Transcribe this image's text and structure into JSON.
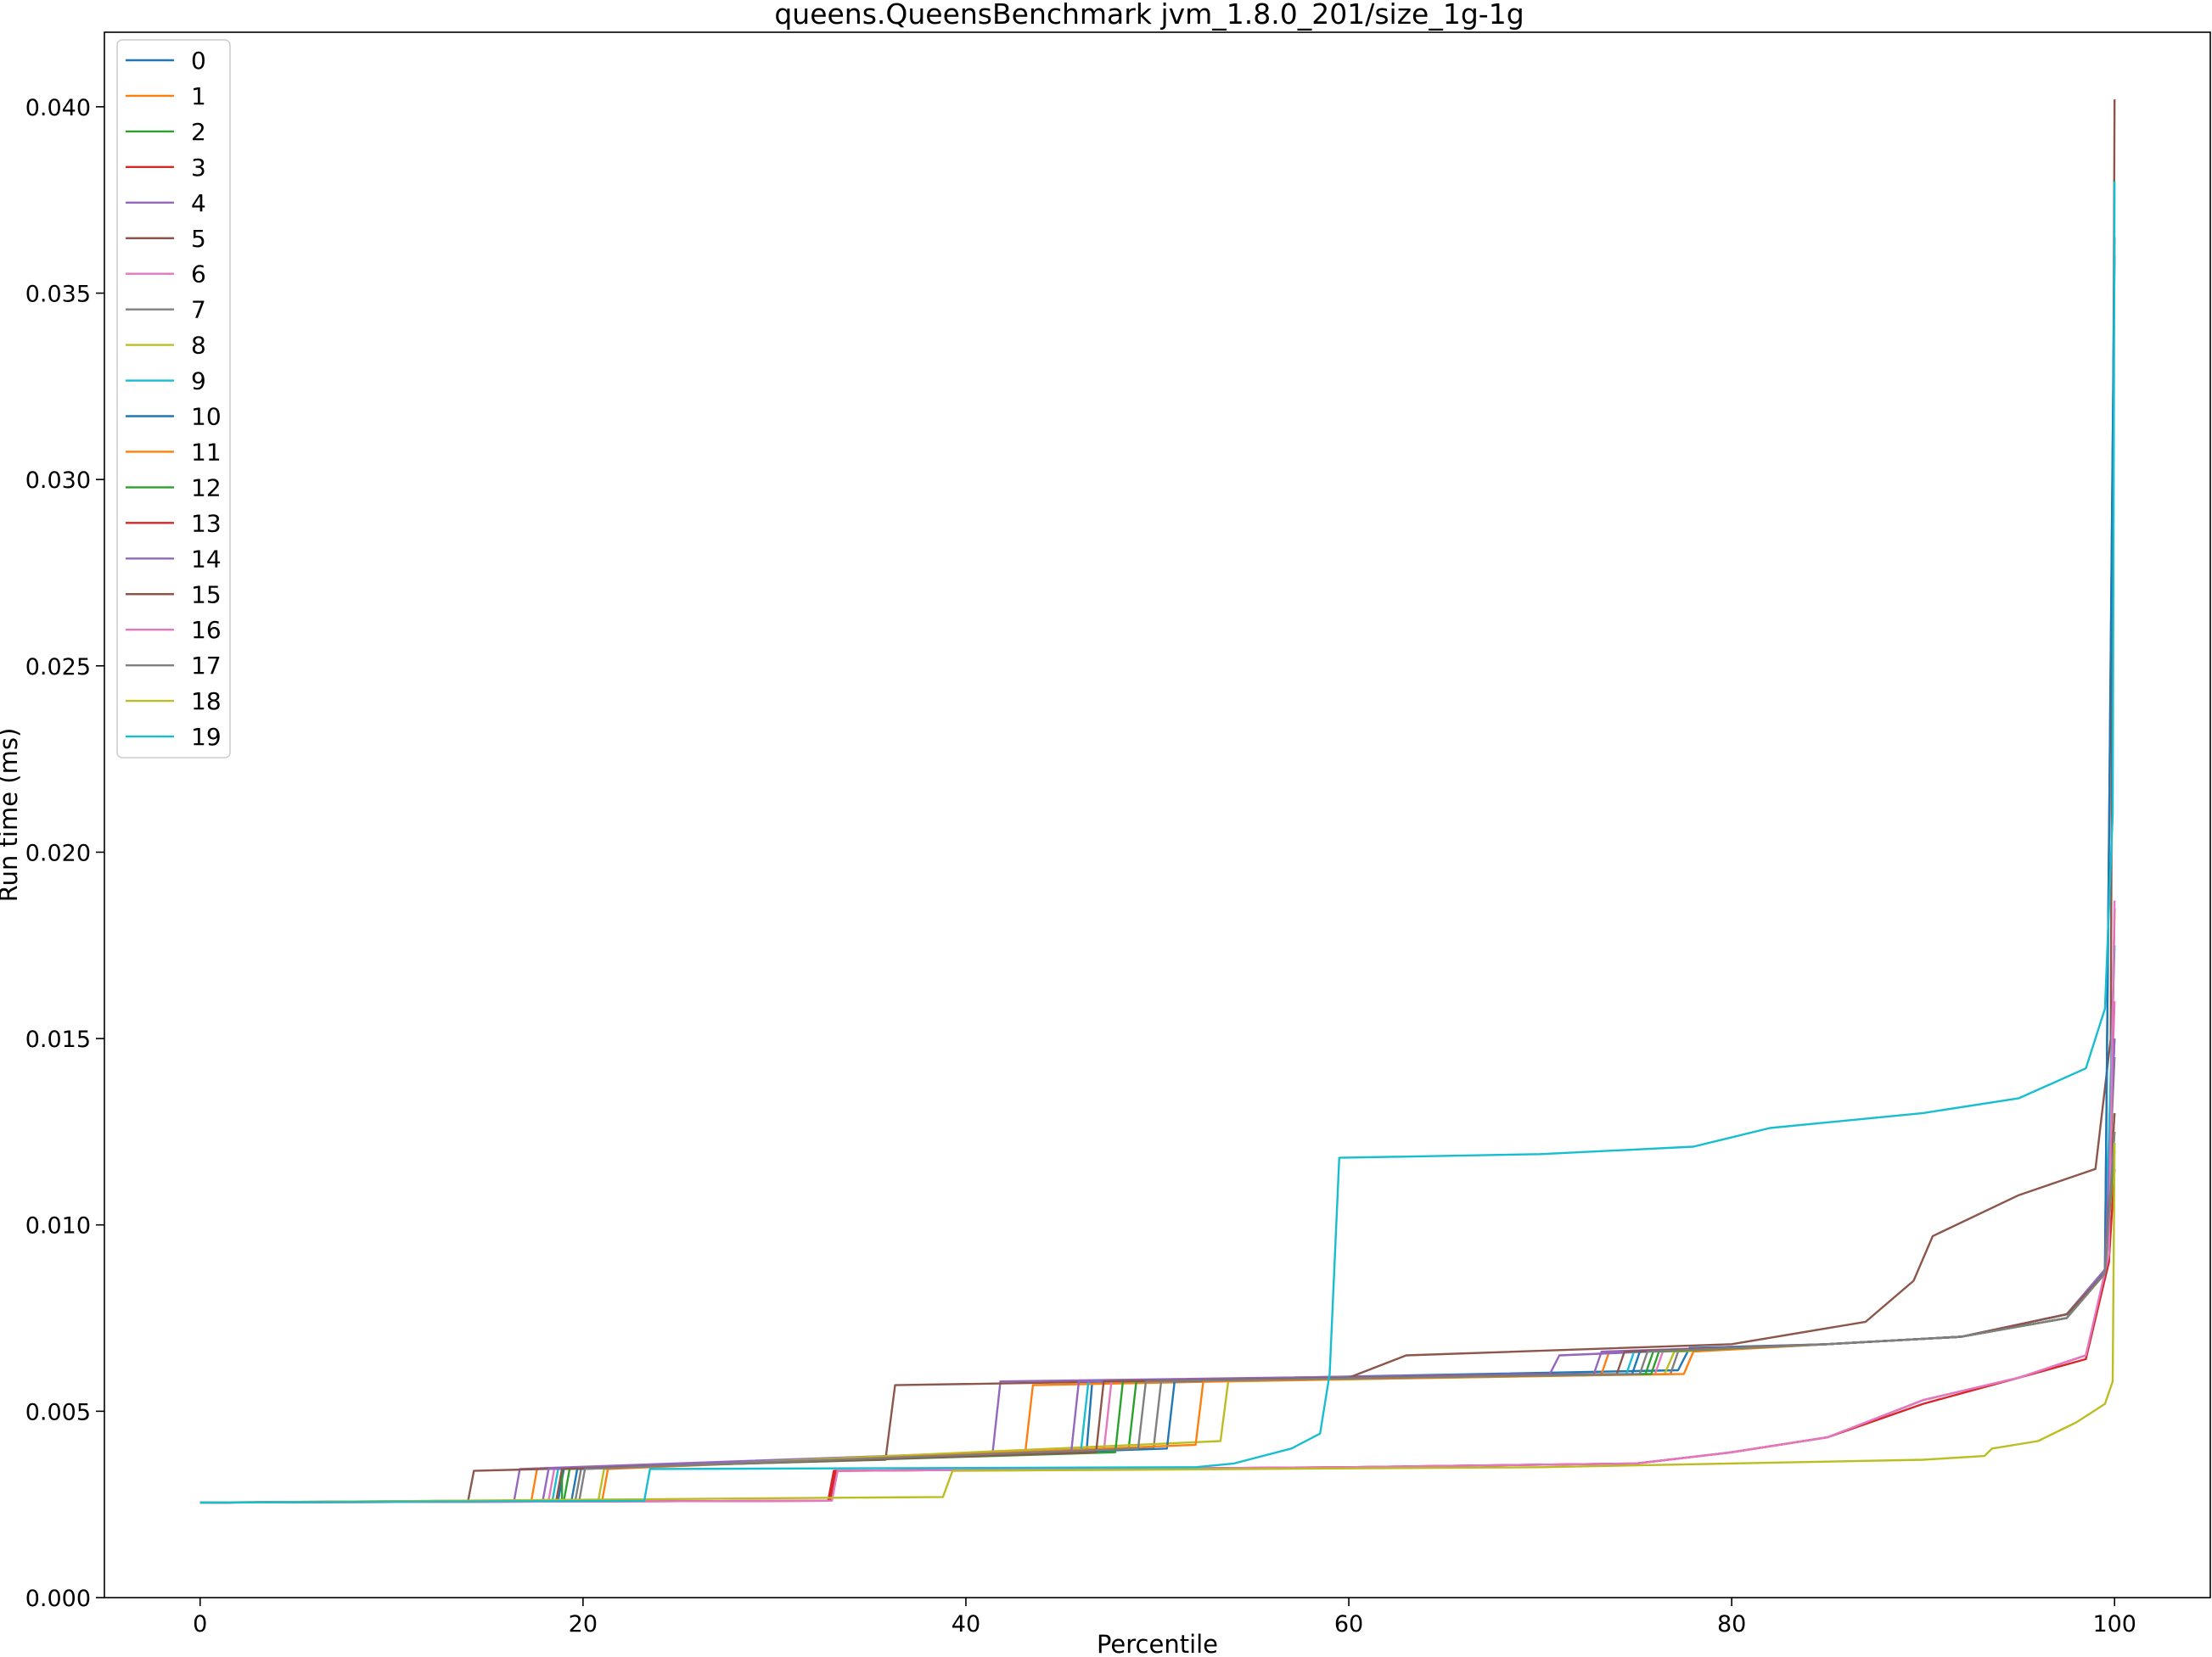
{
  "chart_data": {
    "type": "line",
    "title": "queens.QueensBenchmark jvm_1.8.0_201/size_1g-1g",
    "xlabel": "Percentile",
    "ylabel": "Run time (ms)",
    "xlim": [
      -5,
      105
    ],
    "ylim": [
      0.0,
      0.042
    ],
    "xticks": [
      0,
      20,
      40,
      60,
      80,
      100
    ],
    "xtick_labels": [
      "0",
      "20",
      "40",
      "60",
      "80",
      "100"
    ],
    "yticks": [
      0.0,
      0.005,
      0.01,
      0.015,
      0.02,
      0.025,
      0.03,
      0.035,
      0.04
    ],
    "ytick_labels": [
      "0.000",
      "0.005",
      "0.010",
      "0.015",
      "0.020",
      "0.025",
      "0.030",
      "0.035",
      "0.040"
    ],
    "grid": false,
    "legend_position": "upper-left",
    "colors": [
      "#1f77b4",
      "#ff7f0e",
      "#2ca02c",
      "#d62728",
      "#9467bd",
      "#8c564b",
      "#e377c2",
      "#7f7f7f",
      "#bcbd22",
      "#17becf"
    ],
    "series": [
      {
        "name": "0",
        "x": [
          0,
          18.7,
          19.0,
          46.3,
          46.6,
          77.2,
          77.8,
          85,
          92,
          97.5,
          99.5,
          100
        ],
        "y": [
          0.00255,
          0.0026,
          0.00345,
          0.0039,
          0.0058,
          0.0061,
          0.0067,
          0.0068,
          0.007,
          0.0076,
          0.0088,
          0.036
        ]
      },
      {
        "name": "1",
        "x": [
          0,
          17.3,
          17.6,
          43.1,
          43.5,
          73.2,
          73.6,
          85,
          92,
          97.5,
          99.5,
          100
        ],
        "y": [
          0.00255,
          0.0026,
          0.00345,
          0.0039,
          0.0057,
          0.006,
          0.0066,
          0.0068,
          0.007,
          0.0075,
          0.0087,
          0.0125
        ]
      },
      {
        "name": "2",
        "x": [
          0,
          19.0,
          19.3,
          48.5,
          48.9,
          75.5,
          75.9,
          85,
          92,
          97.5,
          99.5,
          100
        ],
        "y": [
          0.00255,
          0.0026,
          0.00345,
          0.004,
          0.0058,
          0.006,
          0.0066,
          0.0068,
          0.007,
          0.0075,
          0.0087,
          0.012
        ]
      },
      {
        "name": "3",
        "x": [
          0,
          32.8,
          33.1,
          60,
          75,
          80,
          85,
          90,
          95,
          98.5,
          99.7,
          100
        ],
        "y": [
          0.00255,
          0.0026,
          0.0034,
          0.0035,
          0.0036,
          0.0039,
          0.0043,
          0.0052,
          0.0059,
          0.0065,
          0.009,
          0.0115
        ]
      },
      {
        "name": "4",
        "x": [
          0,
          16.4,
          16.7,
          41.4,
          41.8,
          70.5,
          71.0,
          85,
          92,
          97.5,
          99.5,
          100
        ],
        "y": [
          0.00255,
          0.0026,
          0.00345,
          0.0039,
          0.0058,
          0.006,
          0.0065,
          0.0068,
          0.007,
          0.0076,
          0.0088,
          0.015
        ]
      },
      {
        "name": "5",
        "x": [
          0,
          14.0,
          14.3,
          35.8,
          36.3,
          60,
          63,
          80,
          87,
          89.5,
          90.5,
          95,
          99,
          99.8,
          100
        ],
        "y": [
          0.00255,
          0.0026,
          0.0034,
          0.0037,
          0.0057,
          0.0059,
          0.0065,
          0.0068,
          0.0074,
          0.0085,
          0.0097,
          0.0108,
          0.0115,
          0.015,
          0.0402
        ]
      },
      {
        "name": "6",
        "x": [
          0,
          18.2,
          18.5,
          47.2,
          47.6,
          76.0,
          76.4,
          85,
          92,
          97.5,
          99.5,
          100
        ],
        "y": [
          0.00255,
          0.0026,
          0.00345,
          0.0039,
          0.0058,
          0.006,
          0.0066,
          0.0068,
          0.007,
          0.0076,
          0.0087,
          0.016
        ]
      },
      {
        "name": "7",
        "x": [
          0,
          19.6,
          19.9,
          49.8,
          50.2,
          76.8,
          77.2,
          85,
          92,
          97.5,
          99.5,
          100
        ],
        "y": [
          0.00255,
          0.0026,
          0.00345,
          0.004,
          0.0058,
          0.006,
          0.0066,
          0.0068,
          0.007,
          0.0075,
          0.0087,
          0.0145
        ]
      },
      {
        "name": "8",
        "x": [
          0,
          20.8,
          21.1,
          53.3,
          53.7,
          76.5,
          77.0,
          85,
          92,
          97.5,
          99.5,
          100
        ],
        "y": [
          0.00255,
          0.0026,
          0.00345,
          0.0042,
          0.0058,
          0.006,
          0.0066,
          0.0068,
          0.007,
          0.0075,
          0.0087,
          0.012
        ]
      },
      {
        "name": "9",
        "x": [
          0,
          18.4,
          18.7,
          46.0,
          46.4,
          74.5,
          74.9,
          85,
          92,
          97.5,
          99.5,
          100
        ],
        "y": [
          0.00255,
          0.0026,
          0.00345,
          0.0039,
          0.0058,
          0.006,
          0.0066,
          0.0068,
          0.007,
          0.0076,
          0.0088,
          0.0175
        ]
      },
      {
        "name": "10",
        "x": [
          0,
          19.4,
          19.7,
          50.5,
          50.9,
          74.8,
          75.2,
          85,
          92,
          97.5,
          99.5,
          100
        ],
        "y": [
          0.00255,
          0.0026,
          0.00345,
          0.004,
          0.0058,
          0.006,
          0.0066,
          0.0068,
          0.007,
          0.0075,
          0.0088,
          0.0365
        ]
      },
      {
        "name": "11",
        "x": [
          0,
          21.0,
          21.3,
          52.0,
          52.4,
          77.5,
          78.0,
          85,
          92,
          97.5,
          99.5,
          100
        ],
        "y": [
          0.00255,
          0.0026,
          0.00345,
          0.0041,
          0.0058,
          0.006,
          0.0066,
          0.0068,
          0.007,
          0.0075,
          0.0087,
          0.013
        ]
      },
      {
        "name": "12",
        "x": [
          0,
          18.9,
          18.9,
          47.8,
          48.2,
          75.8,
          76.2,
          85,
          92,
          97.5,
          99.5,
          100
        ],
        "y": [
          0.00255,
          0.0026,
          0.00345,
          0.0039,
          0.0058,
          0.006,
          0.0066,
          0.0068,
          0.007,
          0.0075,
          0.0087,
          0.0122
        ]
      },
      {
        "name": "13",
        "x": [
          0,
          32.9,
          33.2,
          60,
          75,
          80,
          85,
          90,
          95,
          98.5,
          99.7,
          100
        ],
        "y": [
          0.00255,
          0.0026,
          0.0034,
          0.0035,
          0.0036,
          0.0039,
          0.0043,
          0.0053,
          0.0059,
          0.0064,
          0.009,
          0.0185
        ]
      },
      {
        "name": "14",
        "x": [
          0,
          17.9,
          18.2,
          45.5,
          45.9,
          72.8,
          73.2,
          85,
          92,
          97.5,
          99.5,
          100
        ],
        "y": [
          0.00255,
          0.0026,
          0.00345,
          0.0039,
          0.0058,
          0.006,
          0.0066,
          0.0068,
          0.007,
          0.0076,
          0.0088,
          0.015
        ]
      },
      {
        "name": "15",
        "x": [
          0,
          18.6,
          18.9,
          46.8,
          47.2,
          74.0,
          74.4,
          85,
          92,
          97.5,
          99.5,
          100
        ],
        "y": [
          0.00255,
          0.0026,
          0.00345,
          0.0039,
          0.0058,
          0.006,
          0.0066,
          0.0068,
          0.007,
          0.0076,
          0.0087,
          0.013
        ]
      },
      {
        "name": "16",
        "x": [
          0,
          33.0,
          33.3,
          60,
          75,
          80,
          85,
          90,
          95,
          98.5,
          99.7,
          100
        ],
        "y": [
          0.00255,
          0.0026,
          0.0034,
          0.0035,
          0.0036,
          0.0039,
          0.0043,
          0.0053,
          0.0059,
          0.0065,
          0.0092,
          0.0187
        ]
      },
      {
        "name": "17",
        "x": [
          0,
          19.8,
          20.1,
          49.0,
          49.4,
          75.2,
          75.6,
          85,
          92,
          97.5,
          99.5,
          100
        ],
        "y": [
          0.00255,
          0.0026,
          0.00345,
          0.004,
          0.0058,
          0.006,
          0.0066,
          0.0068,
          0.007,
          0.0075,
          0.0087,
          0.0125
        ]
      },
      {
        "name": "18",
        "x": [
          0,
          38.8,
          39.3,
          70,
          90,
          93.2,
          93.6,
          96,
          98,
          99.5,
          99.9,
          100
        ],
        "y": [
          0.00255,
          0.0027,
          0.0034,
          0.0035,
          0.0037,
          0.0038,
          0.004,
          0.0042,
          0.0047,
          0.0052,
          0.0058,
          0.0122
        ]
      },
      {
        "name": "19",
        "x": [
          0,
          23.2,
          23.5,
          52,
          54,
          57,
          58.5,
          59.0,
          59.5,
          70,
          78,
          82,
          90,
          95,
          98.5,
          99.5,
          99.9,
          100
        ],
        "y": [
          0.00255,
          0.0026,
          0.00345,
          0.0035,
          0.0036,
          0.004,
          0.0044,
          0.006,
          0.0118,
          0.0119,
          0.0121,
          0.0126,
          0.013,
          0.0134,
          0.0142,
          0.0158,
          0.021,
          0.038
        ]
      }
    ]
  }
}
